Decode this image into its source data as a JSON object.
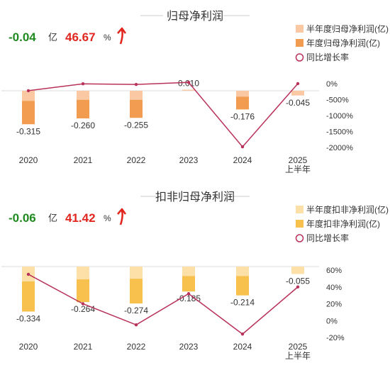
{
  "panels": [
    {
      "title": "归母净利润",
      "summary": {
        "value": "-0.04",
        "unit": "亿",
        "pct": "46.67",
        "pct_unit": "%"
      },
      "legend": [
        "半年度归母净利润(亿)",
        "年度归母净利润(亿)",
        "同比增长率"
      ],
      "colors": {
        "half": "#fac8a3",
        "annual": "#f29c52",
        "line": "#b8325a",
        "value": "#1f8a1f",
        "pct": "#e0261f"
      }
    },
    {
      "title": "扣非归母净利润",
      "summary": {
        "value": "-0.06",
        "unit": "亿",
        "pct": "41.42",
        "pct_unit": "%"
      },
      "legend": [
        "半年度扣非净利润(亿)",
        "年度扣非净利润(亿)",
        "同比增长率"
      ],
      "colors": {
        "half": "#fde0a8",
        "annual": "#f8c04c",
        "line": "#b8325a",
        "value": "#1f8a1f",
        "pct": "#e0261f"
      }
    }
  ],
  "chart_data": [
    {
      "type": "bar",
      "title": "归母净利润",
      "categories": [
        "2020",
        "2021",
        "2022",
        "2023",
        "2024",
        "2025\n上半年"
      ],
      "series": [
        {
          "name": "半年度归母净利润(亿)",
          "values": [
            -0.095,
            -0.085,
            -0.085,
            0.01,
            -0.055,
            -0.045
          ]
        },
        {
          "name": "年度归母净利润(亿)",
          "values": [
            -0.315,
            -0.26,
            -0.255,
            null,
            -0.176,
            null
          ]
        },
        {
          "name": "同比增长率",
          "values": [
            -220,
            -5,
            -25,
            40,
            -1980,
            0
          ]
        }
      ],
      "data_labels": [
        "-0.315",
        "-0.260",
        "-0.255",
        "0.010",
        "-0.176",
        "-0.045"
      ],
      "y2_ticks": [
        "0%",
        "-500%",
        "-1000%",
        "-1500%",
        "-2000%"
      ],
      "y2_range": [
        -2000,
        0
      ]
    },
    {
      "type": "bar",
      "title": "扣非归母净利润",
      "categories": [
        "2020",
        "2021",
        "2022",
        "2023",
        "2024",
        "2025\n上半年"
      ],
      "series": [
        {
          "name": "半年度扣非净利润(亿)",
          "values": [
            -0.11,
            -0.095,
            -0.09,
            -0.07,
            -0.07,
            -0.055
          ]
        },
        {
          "name": "年度扣非净利润(亿)",
          "values": [
            -0.334,
            -0.264,
            -0.274,
            -0.185,
            -0.214,
            null
          ]
        },
        {
          "name": "同比增长率",
          "values": [
            55,
            20,
            -5,
            32,
            -16,
            40
          ]
        }
      ],
      "data_labels": [
        "-0.334",
        "-0.264",
        "-0.274",
        "-0.185",
        "-0.214",
        "-0.055"
      ],
      "y2_ticks": [
        "60%",
        "40%",
        "20%",
        "0%",
        "-20%"
      ],
      "y2_range": [
        -20,
        60
      ]
    }
  ]
}
